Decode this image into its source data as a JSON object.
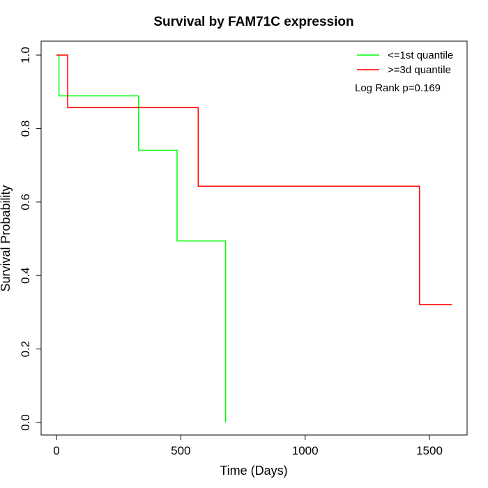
{
  "chart_data": {
    "type": "line",
    "title": "Survival by FAM71C expression",
    "xlabel": "Time (Days)",
    "ylabel": "Survival Probability",
    "xlim": [
      0,
      1650
    ],
    "ylim": [
      0,
      1.0
    ],
    "xticks": [
      0,
      500,
      1000,
      1500
    ],
    "xtick_labels": [
      "0",
      "500",
      "1000",
      "1500"
    ],
    "yticks": [
      0.0,
      0.2,
      0.4,
      0.6,
      0.8,
      1.0
    ],
    "ytick_labels": [
      "0.0",
      "0.2",
      "0.4",
      "0.6",
      "0.8",
      "1.0"
    ],
    "grid": false,
    "legend_position": "top-right",
    "annotation": "Log Rank p=0.169",
    "series": [
      {
        "name": "<=1st quantile",
        "color": "#00ff00",
        "step": true,
        "x": [
          0,
          10,
          330,
          485,
          680
        ],
        "y": [
          1.0,
          0.889,
          0.741,
          0.494,
          0.0
        ],
        "end_x": 680
      },
      {
        "name": ">=3d quantile",
        "color": "#ff0000",
        "step": true,
        "x": [
          0,
          45,
          570,
          1460
        ],
        "y": [
          1.0,
          0.857,
          0.643,
          0.321
        ],
        "end_x": 1590
      }
    ]
  }
}
